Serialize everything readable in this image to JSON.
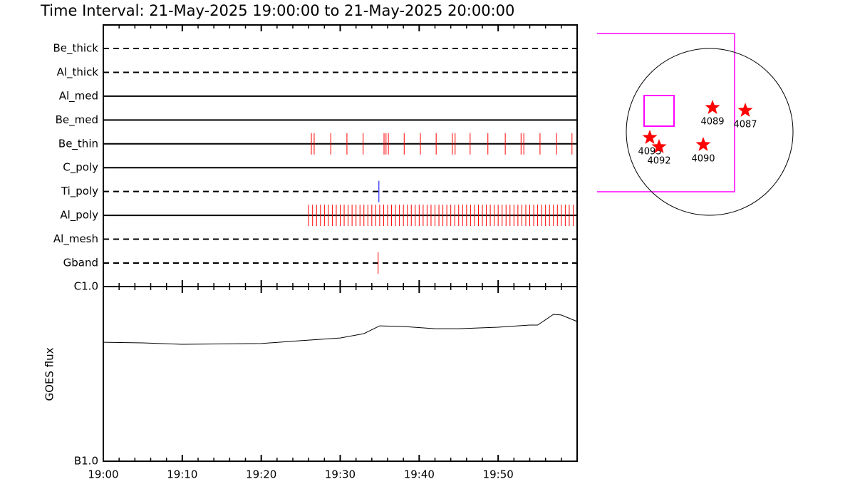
{
  "chart_data": [
    {
      "type": "timeline",
      "title": "Time Interval: 21-May-2025 19:00:00 to 21-May-2025 20:00:00",
      "categories": [
        "Be_thick",
        "Al_thick",
        "Al_med",
        "Be_med",
        "Be_thin",
        "C_poly",
        "Ti_poly",
        "Al_poly",
        "Al_mesh",
        "Gband"
      ],
      "linestyles": [
        "dashed",
        "dashed",
        "solid",
        "solid",
        "solid",
        "solid",
        "dashed",
        "solid",
        "dashed",
        "dashed"
      ],
      "event_colors": [
        "#ff0000",
        "#ff0000",
        "#ff0000",
        "#ff0000",
        "#ff0000",
        "#ff0000",
        "#0000ff",
        "#ff0000",
        "#ff0000",
        "#ff0000"
      ],
      "events": [
        [],
        [],
        [],
        [],
        [
          26.35,
          26.7,
          28.8,
          30.85,
          32.9,
          35.55,
          35.8,
          36.1,
          38.1,
          40.15,
          42.15,
          44.2,
          44.55,
          46.45,
          48.7,
          50.9,
          52.9,
          53.25,
          55.3,
          57.4,
          59.35
        ],
        [],
        [
          34.9
        ],
        [
          26.0,
          26.5,
          27.0,
          27.5,
          28.0,
          28.5,
          29.0,
          29.5,
          30.0,
          30.5,
          31.0,
          31.5,
          32.0,
          32.5,
          33.0,
          33.5,
          34.0,
          34.5,
          35.0,
          35.5,
          36.0,
          36.5,
          37.0,
          37.5,
          38.0,
          38.5,
          39.0,
          39.5,
          40.0,
          40.5,
          41.0,
          41.5,
          42.0,
          42.5,
          43.0,
          43.5,
          44.0,
          44.5,
          45.0,
          45.5,
          46.0,
          46.5,
          47.0,
          47.5,
          48.0,
          48.5,
          49.0,
          49.5,
          50.0,
          50.5,
          51.0,
          51.5,
          52.0,
          52.5,
          53.0,
          53.5,
          54.0,
          54.5,
          55.0,
          55.5,
          56.0,
          56.5,
          57.0,
          57.5,
          58.0,
          58.5,
          59.0,
          59.5
        ],
        [],
        [
          34.8
        ]
      ],
      "xlim": [
        0,
        60
      ],
      "xticks": [
        0,
        10,
        20,
        30,
        40,
        50,
        60
      ],
      "xminorticks": [
        2,
        4,
        6,
        8,
        12,
        14,
        16,
        18,
        22,
        24,
        26,
        28,
        32,
        34,
        36,
        38,
        42,
        44,
        46,
        48,
        52,
        54,
        56,
        58
      ]
    },
    {
      "type": "line",
      "ylabel": "GOES flux",
      "log_scale": true,
      "color": "#000000",
      "x": [
        0,
        5,
        10,
        20,
        25,
        30,
        33,
        35,
        38,
        42,
        45,
        50,
        54,
        55,
        57,
        58,
        60
      ],
      "values": [
        4.8e-07,
        4.76e-07,
        4.67e-07,
        4.72e-07,
        4.9e-07,
        5.08e-07,
        5.38e-07,
        5.96e-07,
        5.91e-07,
        5.74e-07,
        5.74e-07,
        5.85e-07,
        6.02e-07,
        6.02e-07,
        6.93e-07,
        6.87e-07,
        6.31e-07
      ],
      "xlim": [
        0,
        60
      ],
      "xticks": [
        {
          "value": 0,
          "label": "19:00"
        },
        {
          "value": 10,
          "label": "19:10"
        },
        {
          "value": 20,
          "label": "19:20"
        },
        {
          "value": 30,
          "label": "19:30"
        },
        {
          "value": 40,
          "label": "19:40"
        },
        {
          "value": 50,
          "label": "19:50"
        }
      ],
      "xminorticks": [
        2,
        4,
        6,
        8,
        12,
        14,
        16,
        18,
        22,
        24,
        26,
        28,
        32,
        34,
        36,
        38,
        42,
        44,
        46,
        48,
        52,
        54,
        56,
        58
      ],
      "ylim": [
        1e-07,
        1e-06
      ],
      "yticks": [
        {
          "value": 1e-07,
          "label": "B1.0"
        },
        {
          "value": 1e-06,
          "label": "C1.0"
        }
      ]
    }
  ],
  "map": {
    "regions": [
      "4089",
      "4087",
      "4093",
      "4092",
      "4090"
    ]
  }
}
